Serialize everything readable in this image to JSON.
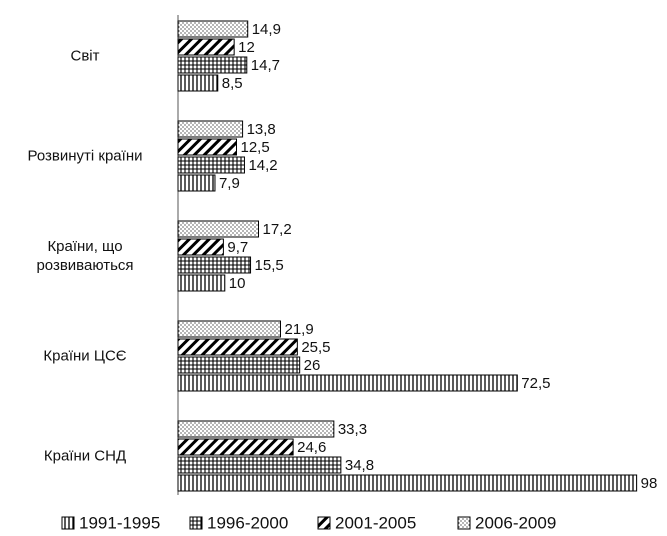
{
  "chart_data": {
    "type": "bar",
    "orientation": "horizontal",
    "categories": [
      "Світ",
      "Розвинуті країни",
      "Країни, що розвиваються",
      "Країни ЦСЄ",
      "Країни СНД"
    ],
    "series": [
      {
        "name": "1991-1995",
        "color": "#000000",
        "values": [
          8.5,
          7.9,
          10,
          72.5,
          98
        ],
        "value_labels": [
          "8,5",
          "7,9",
          "10",
          "72,5",
          "98"
        ]
      },
      {
        "name": "1996-2000",
        "color": "#000000",
        "values": [
          14.7,
          14.2,
          15.5,
          26,
          34.8
        ],
        "value_labels": [
          "14,7",
          "14,2",
          "15,5",
          "26",
          "34,8"
        ]
      },
      {
        "name": "2001-2005",
        "color": "#000000",
        "values": [
          12,
          12.5,
          9.7,
          25.5,
          24.6
        ],
        "value_labels": [
          "12",
          "12,5",
          "9,7",
          "25,5",
          "24,6"
        ]
      },
      {
        "name": "2006-2009",
        "color": "#000000",
        "values": [
          14.9,
          13.8,
          17.2,
          21.9,
          33.3
        ],
        "value_labels": [
          "14,9",
          "13,8",
          "17,2",
          "21,9",
          "33,3"
        ]
      }
    ],
    "legend": "bottom"
  }
}
